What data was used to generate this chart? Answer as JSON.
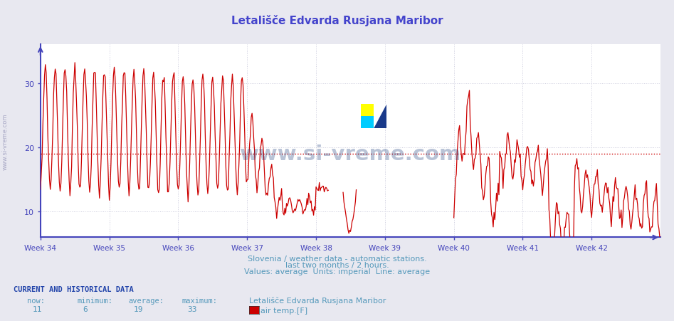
{
  "title": "Letališče Edvarda Rusjana Maribor",
  "title_color": "#4444cc",
  "bg_color": "#e8e8f0",
  "plot_bg_color": "#ffffff",
  "grid_color": "#ccccdd",
  "axis_color": "#4444bb",
  "x_labels": [
    "Week 34",
    "Week 35",
    "Week 36",
    "Week 37",
    "Week 38",
    "Week 39",
    "Week 40",
    "Week 41",
    "Week 42"
  ],
  "x_tick_pos": [
    0,
    84,
    168,
    252,
    336,
    420,
    504,
    588,
    672
  ],
  "y_ticks": [
    10,
    20,
    30
  ],
  "ylim_min": 6,
  "ylim_max": 36,
  "xlim_min": 0,
  "xlim_max": 756,
  "average_value": 19,
  "average_line_color": "#cc0000",
  "line_color": "#cc0000",
  "line_width": 0.9,
  "subtitle1": "Slovenia / weather data - automatic stations.",
  "subtitle2": "last two months / 2 hours.",
  "subtitle3": "Values: average  Units: imperial  Line: average",
  "subtitle_color": "#5599bb",
  "footer_title": "CURRENT AND HISTORICAL DATA",
  "footer_title_color": "#2244aa",
  "footer_headers": [
    "now:",
    "minimum:",
    "average:",
    "maximum:"
  ],
  "footer_values": [
    "11",
    "6",
    "19",
    "33"
  ],
  "footer_station": "Letališče Edvarda Rusjana Maribor",
  "footer_series": "air temp.[F]",
  "footer_swatch_color": "#cc0000",
  "footer_color": "#5599bb",
  "watermark_text": "www.si-vreme.com",
  "watermark_color": "#1a3a7a",
  "watermark_alpha": 0.3,
  "sidebar_text": "www.si-vreme.com",
  "sidebar_color": "#9999bb",
  "logo_yellow": "#ffff00",
  "logo_cyan": "#00ccff",
  "logo_blue": "#1a3a8a"
}
